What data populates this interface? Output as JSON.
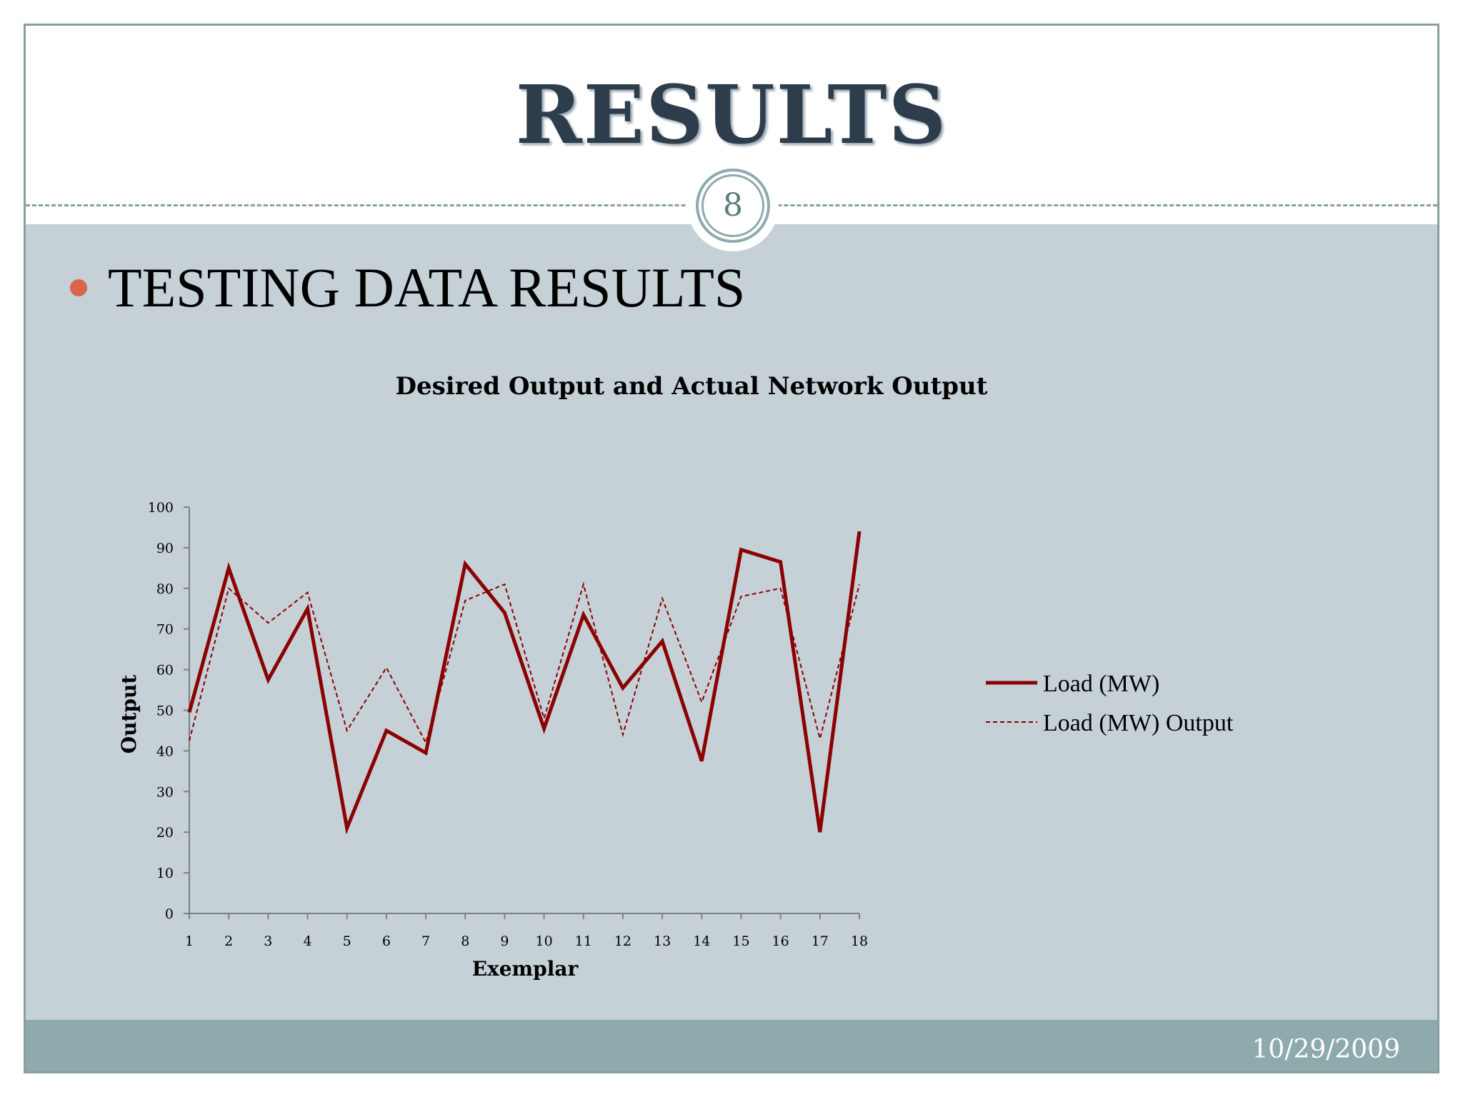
{
  "slide": {
    "title": "RESULTS",
    "page_number": "8",
    "bullet": "TESTING DATA RESULTS",
    "date": "10/29/2009"
  },
  "colors": {
    "series": "#8b0000",
    "bullet": "#d9664c",
    "body_background": "#c5d1d7",
    "footer": "#8eaaac",
    "title": "#2e3d4b"
  },
  "chart_data": {
    "type": "line",
    "title": "Desired Output and Actual Network Output",
    "xlabel": "Exemplar",
    "ylabel": "Output",
    "x": [
      1,
      2,
      3,
      4,
      5,
      6,
      7,
      8,
      9,
      10,
      11,
      12,
      13,
      14,
      15,
      16,
      17,
      18
    ],
    "ylim": [
      0,
      100
    ],
    "yticks": [
      0,
      10,
      20,
      30,
      40,
      50,
      60,
      70,
      80,
      90,
      100
    ],
    "grid": false,
    "legend_position": "right",
    "series": [
      {
        "name": "Load (MW)",
        "style": "solid",
        "values": [
          49.5,
          85,
          57.5,
          75,
          21,
          45,
          39.5,
          86,
          74,
          45.5,
          73.5,
          55.5,
          67,
          37.5,
          89.5,
          86.5,
          20,
          94
        ]
      },
      {
        "name": "Load (MW) Output",
        "style": "dashed",
        "values": [
          42.5,
          80,
          71.5,
          79,
          45,
          60.5,
          42,
          77,
          81,
          48,
          81,
          44,
          77.5,
          52,
          78,
          80,
          43,
          81
        ]
      }
    ]
  }
}
